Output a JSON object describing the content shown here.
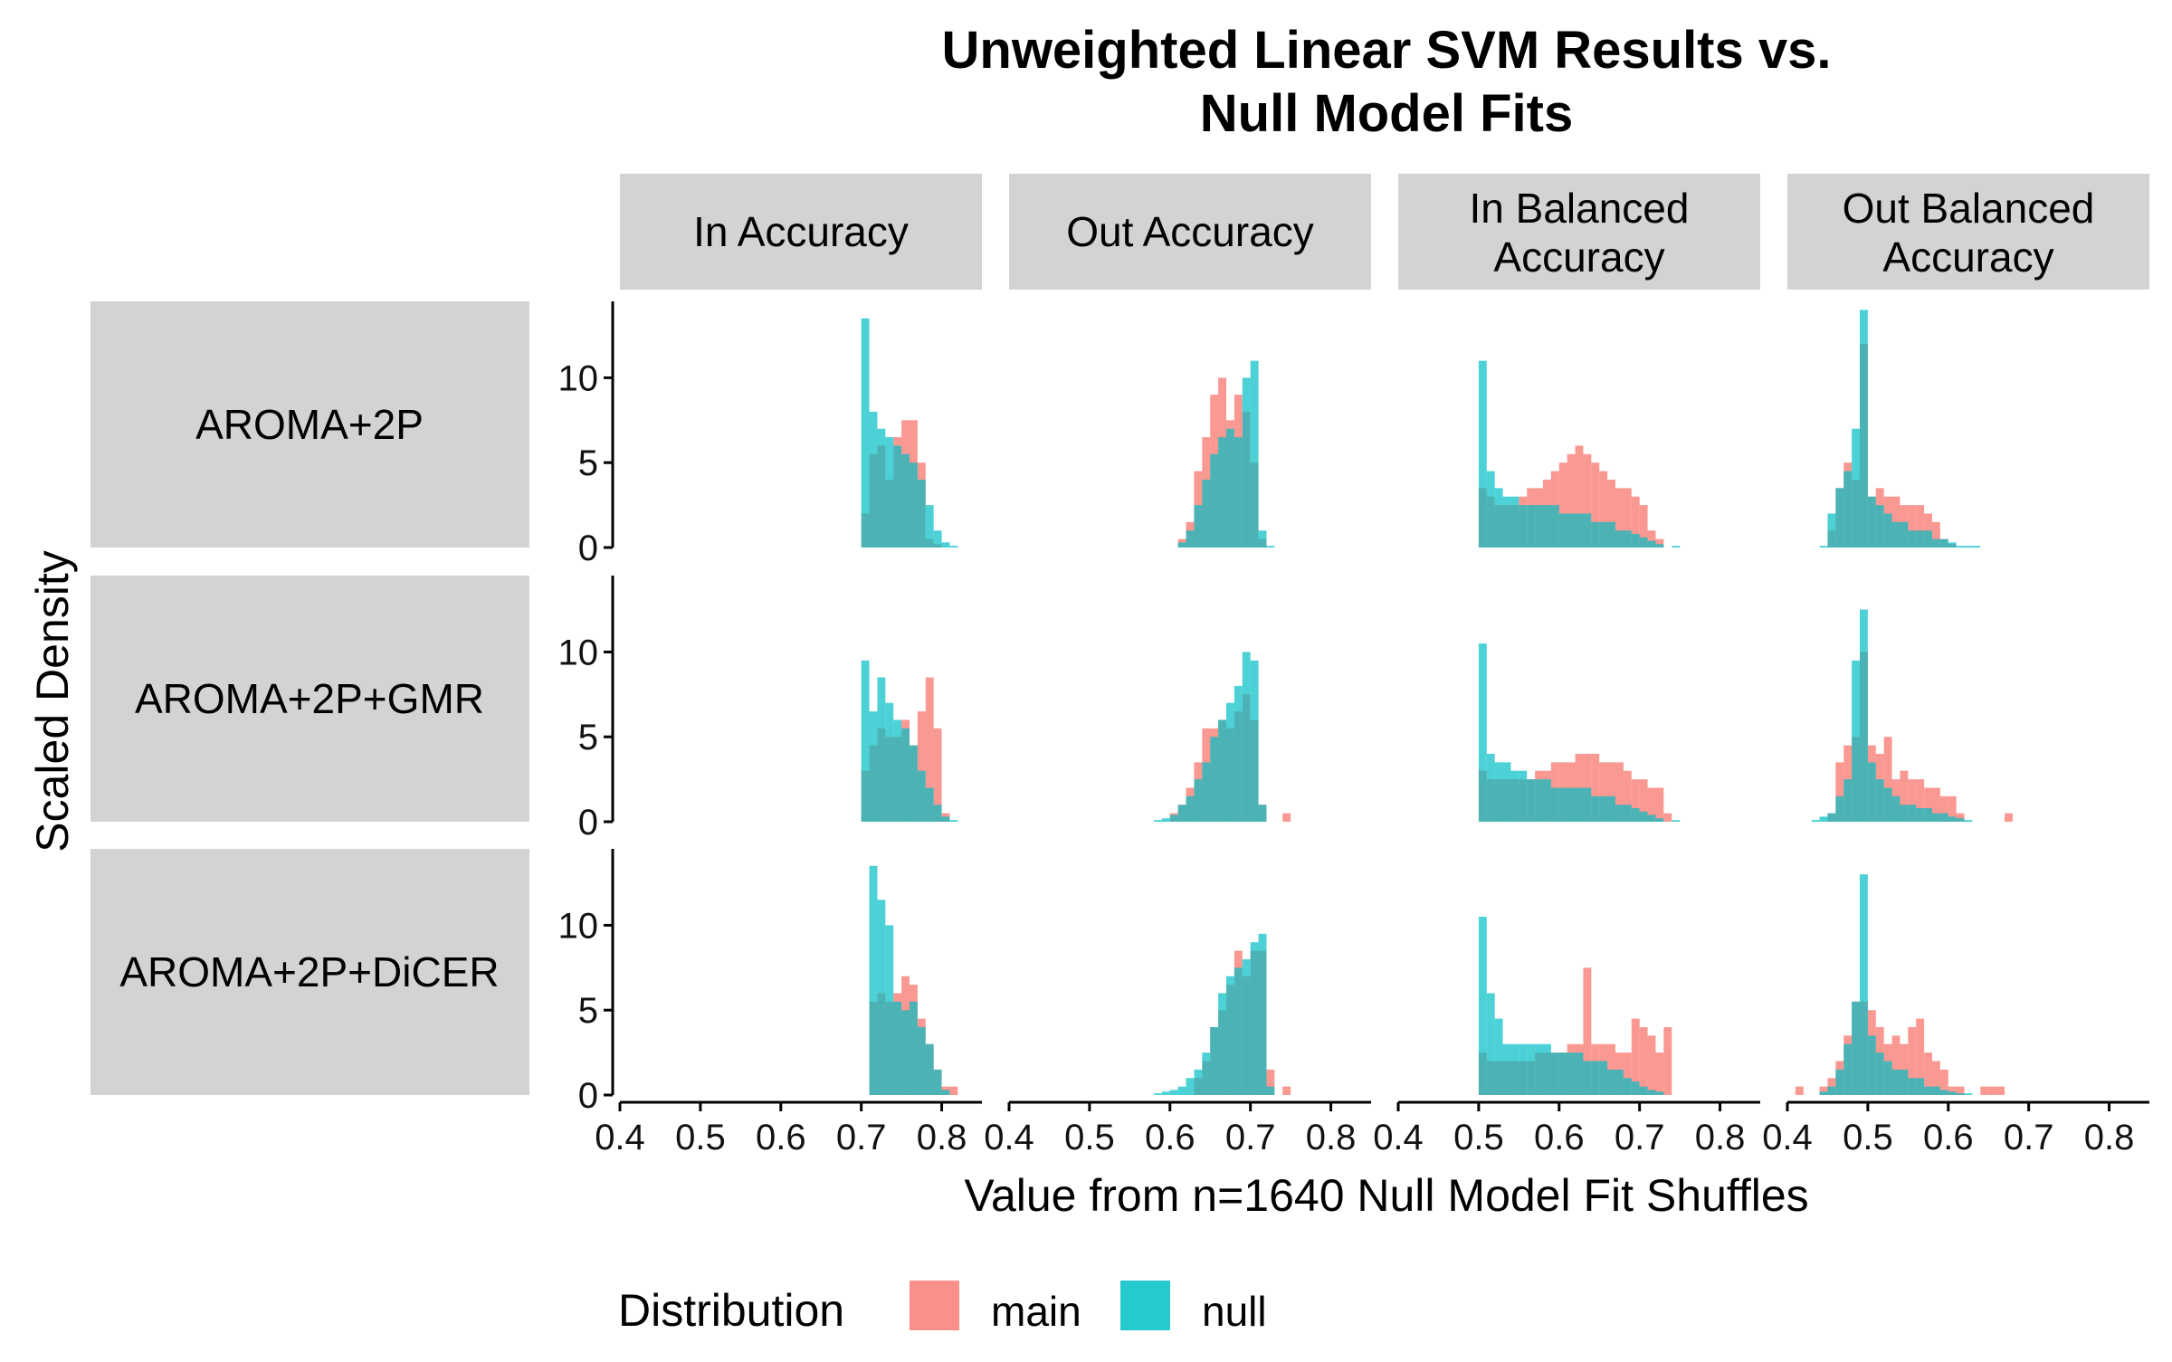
{
  "chart_data": {
    "type": "bar",
    "title_lines": [
      "Unweighted Linear SVM Results vs.",
      "Null Model Fits"
    ],
    "xlabel": "Value from n=1640 Null Model Fit Shuffles",
    "ylabel": "Scaled Density",
    "xlim": [
      0.4,
      0.85
    ],
    "ylim": [
      0,
      14.5
    ],
    "x_ticks": [
      "0.4",
      "0.5",
      "0.6",
      "0.7",
      "0.8"
    ],
    "y_ticks": [
      "0",
      "5",
      "10"
    ],
    "columns": [
      [
        "In Accuracy"
      ],
      [
        "Out Accuracy"
      ],
      [
        "In Balanced",
        "Accuracy"
      ],
      [
        "Out Balanced",
        "Accuracy"
      ]
    ],
    "rows": [
      "AROMA+2P",
      "AROMA+2P+GMR",
      "AROMA+2P+DiCER"
    ],
    "legend": {
      "title": "Distribution",
      "position": "bottom",
      "entries": [
        "main",
        "null"
      ]
    },
    "colors": {
      "main": "#F8766D",
      "null": "#00BFC4",
      "strip": "#d3d3d3"
    },
    "bin_width": 0.01,
    "panels": [
      {
        "row": 0,
        "col": 0,
        "main": {
          "x": [
            0.705,
            0.715,
            0.725,
            0.735,
            0.745,
            0.755,
            0.765,
            0.775,
            0.785,
            0.795
          ],
          "y": [
            2.0,
            5.5,
            6.0,
            4.0,
            6.5,
            7.5,
            7.5,
            5.0,
            0.5,
            0.2
          ]
        },
        "null": {
          "x": [
            0.705,
            0.715,
            0.725,
            0.735,
            0.745,
            0.755,
            0.765,
            0.775,
            0.785,
            0.795,
            0.805,
            0.815
          ],
          "y": [
            13.5,
            8.0,
            7.0,
            6.5,
            6.0,
            5.5,
            5.0,
            4.0,
            2.5,
            1.0,
            0.3,
            0.1
          ]
        }
      },
      {
        "row": 0,
        "col": 1,
        "main": {
          "x": [
            0.615,
            0.625,
            0.635,
            0.645,
            0.655,
            0.665,
            0.675,
            0.685,
            0.695,
            0.705,
            0.715
          ],
          "y": [
            0.5,
            1.5,
            4.5,
            6.5,
            9.0,
            10.0,
            7.5,
            9.0,
            8.0,
            5.0,
            0.5
          ]
        },
        "null": {
          "x": [
            0.615,
            0.625,
            0.635,
            0.645,
            0.655,
            0.665,
            0.675,
            0.685,
            0.695,
            0.705,
            0.715,
            0.725
          ],
          "y": [
            0.3,
            1.0,
            2.5,
            4.0,
            5.5,
            6.5,
            7.0,
            6.5,
            10.0,
            11.0,
            1.0,
            0.1
          ]
        }
      },
      {
        "row": 1,
        "col": 0,
        "main": {
          "x": [
            0.705,
            0.715,
            0.725,
            0.735,
            0.745,
            0.755,
            0.765,
            0.775,
            0.785,
            0.795,
            0.805
          ],
          "y": [
            3.0,
            4.5,
            5.5,
            5.0,
            5.0,
            6.0,
            4.5,
            6.5,
            8.5,
            5.5,
            0.5
          ]
        },
        "null": {
          "x": [
            0.705,
            0.715,
            0.725,
            0.735,
            0.745,
            0.755,
            0.765,
            0.775,
            0.785,
            0.795,
            0.805,
            0.815
          ],
          "y": [
            9.5,
            6.5,
            8.5,
            7.0,
            6.0,
            5.5,
            4.5,
            3.0,
            2.0,
            1.0,
            0.3,
            0.1
          ]
        }
      },
      {
        "row": 1,
        "col": 1,
        "main": {
          "x": [
            0.605,
            0.615,
            0.625,
            0.635,
            0.645,
            0.655,
            0.665,
            0.675,
            0.685,
            0.695,
            0.705,
            0.715,
            0.745
          ],
          "y": [
            0.5,
            1.0,
            2.0,
            3.5,
            5.5,
            5.5,
            6.0,
            5.5,
            6.5,
            7.5,
            6.0,
            1.0,
            0.5
          ]
        },
        "null": {
          "x": [
            0.585,
            0.595,
            0.605,
            0.615,
            0.625,
            0.635,
            0.645,
            0.655,
            0.665,
            0.675,
            0.685,
            0.695,
            0.705,
            0.715
          ],
          "y": [
            0.1,
            0.2,
            0.4,
            1.0,
            1.5,
            2.5,
            3.5,
            5.0,
            6.0,
            7.0,
            8.0,
            10.0,
            9.5,
            1.0
          ]
        }
      },
      {
        "row": 2,
        "col": 0,
        "main": {
          "x": [
            0.715,
            0.725,
            0.735,
            0.745,
            0.755,
            0.765,
            0.775,
            0.785,
            0.795,
            0.805,
            0.815
          ],
          "y": [
            5.5,
            6.0,
            5.5,
            6.0,
            7.0,
            6.5,
            4.5,
            3.0,
            1.5,
            0.5,
            0.5
          ]
        },
        "null": {
          "x": [
            0.715,
            0.725,
            0.735,
            0.745,
            0.755,
            0.765,
            0.775,
            0.785,
            0.795,
            0.805
          ],
          "y": [
            13.5,
            11.5,
            10.0,
            5.5,
            5.0,
            5.5,
            4.0,
            3.0,
            1.5,
            0.3
          ]
        }
      },
      {
        "row": 2,
        "col": 1,
        "main": {
          "x": [
            0.635,
            0.645,
            0.655,
            0.665,
            0.675,
            0.685,
            0.695,
            0.705,
            0.715,
            0.725,
            0.745
          ],
          "y": [
            1.0,
            2.0,
            4.0,
            5.0,
            6.5,
            8.5,
            7.0,
            8.5,
            8.5,
            1.5,
            0.5
          ]
        },
        "null": {
          "x": [
            0.585,
            0.595,
            0.605,
            0.615,
            0.625,
            0.635,
            0.645,
            0.655,
            0.665,
            0.675,
            0.685,
            0.695,
            0.705,
            0.715,
            0.725
          ],
          "y": [
            0.1,
            0.2,
            0.3,
            0.5,
            1.0,
            1.5,
            2.5,
            4.0,
            6.0,
            7.0,
            7.5,
            8.0,
            9.0,
            9.5,
            0.5
          ]
        }
      },
      {
        "row": 0,
        "col": 2,
        "main": {
          "x": [
            0.505,
            0.515,
            0.525,
            0.535,
            0.545,
            0.555,
            0.565,
            0.575,
            0.585,
            0.595,
            0.605,
            0.615,
            0.625,
            0.635,
            0.645,
            0.655,
            0.665,
            0.675,
            0.685,
            0.695,
            0.705,
            0.715,
            0.725
          ],
          "y": [
            3.5,
            3.0,
            2.5,
            2.5,
            2.5,
            3.0,
            3.5,
            3.5,
            4.0,
            4.5,
            5.0,
            5.5,
            6.0,
            5.5,
            5.0,
            4.5,
            4.0,
            3.5,
            3.5,
            3.0,
            2.5,
            1.0,
            0.5
          ]
        },
        "null": {
          "x": [
            0.505,
            0.515,
            0.525,
            0.535,
            0.545,
            0.555,
            0.565,
            0.575,
            0.585,
            0.595,
            0.605,
            0.615,
            0.625,
            0.635,
            0.645,
            0.655,
            0.665,
            0.675,
            0.685,
            0.695,
            0.705,
            0.715,
            0.725,
            0.745
          ],
          "y": [
            11.0,
            4.5,
            3.5,
            3.0,
            3.0,
            2.5,
            2.5,
            2.5,
            2.5,
            2.5,
            2.0,
            2.0,
            2.0,
            2.0,
            1.5,
            1.5,
            1.5,
            1.0,
            1.0,
            0.8,
            0.6,
            0.4,
            0.2,
            0.1
          ]
        }
      },
      {
        "row": 1,
        "col": 2,
        "main": {
          "x": [
            0.505,
            0.515,
            0.525,
            0.535,
            0.545,
            0.555,
            0.565,
            0.575,
            0.585,
            0.595,
            0.605,
            0.615,
            0.625,
            0.635,
            0.645,
            0.655,
            0.665,
            0.675,
            0.685,
            0.695,
            0.705,
            0.715,
            0.725,
            0.735
          ],
          "y": [
            3.0,
            2.5,
            2.5,
            2.5,
            2.5,
            2.5,
            2.5,
            3.0,
            3.0,
            3.5,
            3.5,
            3.5,
            4.0,
            4.0,
            4.0,
            3.5,
            3.5,
            3.5,
            3.0,
            2.5,
            2.5,
            2.0,
            2.0,
            0.5
          ]
        },
        "null": {
          "x": [
            0.505,
            0.515,
            0.525,
            0.535,
            0.545,
            0.555,
            0.565,
            0.575,
            0.585,
            0.595,
            0.605,
            0.615,
            0.625,
            0.635,
            0.645,
            0.655,
            0.665,
            0.675,
            0.685,
            0.695,
            0.705,
            0.715,
            0.725,
            0.745
          ],
          "y": [
            10.5,
            4.0,
            3.5,
            3.5,
            3.0,
            3.0,
            2.5,
            2.5,
            2.5,
            2.0,
            2.0,
            2.0,
            2.0,
            2.0,
            1.5,
            1.5,
            1.5,
            1.0,
            1.0,
            0.8,
            0.6,
            0.4,
            0.2,
            0.1
          ]
        }
      },
      {
        "row": 2,
        "col": 2,
        "main": {
          "x": [
            0.505,
            0.515,
            0.525,
            0.535,
            0.545,
            0.555,
            0.565,
            0.575,
            0.585,
            0.595,
            0.605,
            0.615,
            0.625,
            0.635,
            0.645,
            0.655,
            0.665,
            0.675,
            0.685,
            0.695,
            0.705,
            0.715,
            0.725,
            0.735
          ],
          "y": [
            2.5,
            2.0,
            2.0,
            2.0,
            2.0,
            2.0,
            2.0,
            2.5,
            2.5,
            2.5,
            2.5,
            3.0,
            3.0,
            7.5,
            3.0,
            3.0,
            3.0,
            2.5,
            2.5,
            4.5,
            4.0,
            3.5,
            2.5,
            4.0
          ]
        },
        "null": {
          "x": [
            0.505,
            0.515,
            0.525,
            0.535,
            0.545,
            0.555,
            0.565,
            0.575,
            0.585,
            0.595,
            0.605,
            0.615,
            0.625,
            0.635,
            0.645,
            0.655,
            0.665,
            0.675,
            0.685,
            0.695,
            0.705,
            0.715,
            0.725
          ],
          "y": [
            10.5,
            6.0,
            4.5,
            3.0,
            3.0,
            3.0,
            3.0,
            3.0,
            3.0,
            2.5,
            2.5,
            2.5,
            2.5,
            2.0,
            2.0,
            2.0,
            1.5,
            1.5,
            1.0,
            0.8,
            0.5,
            0.3,
            0.2
          ]
        }
      },
      {
        "row": 0,
        "col": 3,
        "main": {
          "x": [
            0.455,
            0.465,
            0.475,
            0.485,
            0.495,
            0.505,
            0.515,
            0.525,
            0.535,
            0.545,
            0.555,
            0.565,
            0.575,
            0.585,
            0.595,
            0.605
          ],
          "y": [
            1.0,
            3.5,
            5.0,
            4.0,
            12.0,
            3.0,
            3.5,
            3.0,
            3.0,
            2.5,
            2.5,
            2.5,
            2.0,
            1.5,
            0.5,
            0.2
          ]
        },
        "null": {
          "x": [
            0.445,
            0.455,
            0.465,
            0.475,
            0.485,
            0.495,
            0.505,
            0.515,
            0.525,
            0.535,
            0.545,
            0.555,
            0.565,
            0.575,
            0.585,
            0.595,
            0.605,
            0.615,
            0.625,
            0.635
          ],
          "y": [
            0.1,
            2.0,
            3.5,
            4.5,
            7.0,
            14.0,
            3.0,
            2.5,
            2.0,
            1.5,
            1.5,
            1.0,
            1.0,
            1.0,
            0.5,
            0.5,
            0.3,
            0.1,
            0.1,
            0.1
          ]
        }
      },
      {
        "row": 1,
        "col": 3,
        "main": {
          "x": [
            0.455,
            0.465,
            0.475,
            0.485,
            0.495,
            0.505,
            0.515,
            0.525,
            0.535,
            0.545,
            0.555,
            0.565,
            0.575,
            0.585,
            0.595,
            0.605,
            0.615,
            0.675
          ],
          "y": [
            0.5,
            3.5,
            4.5,
            5.0,
            10.0,
            4.5,
            4.0,
            5.0,
            2.5,
            3.0,
            2.5,
            2.5,
            2.0,
            2.0,
            1.5,
            1.5,
            0.5,
            0.5
          ]
        },
        "null": {
          "x": [
            0.435,
            0.445,
            0.455,
            0.465,
            0.475,
            0.485,
            0.495,
            0.505,
            0.515,
            0.525,
            0.535,
            0.545,
            0.555,
            0.565,
            0.575,
            0.585,
            0.595,
            0.605,
            0.615,
            0.625
          ],
          "y": [
            0.1,
            0.3,
            0.5,
            1.5,
            2.5,
            9.5,
            12.5,
            3.5,
            2.5,
            2.0,
            1.5,
            1.0,
            1.0,
            0.8,
            0.8,
            0.5,
            0.5,
            0.3,
            0.2,
            0.1
          ]
        }
      },
      {
        "row": 2,
        "col": 3,
        "main": {
          "x": [
            0.415,
            0.445,
            0.455,
            0.465,
            0.475,
            0.485,
            0.495,
            0.505,
            0.515,
            0.525,
            0.535,
            0.545,
            0.555,
            0.565,
            0.575,
            0.585,
            0.595,
            0.605,
            0.615,
            0.645,
            0.655,
            0.665
          ],
          "y": [
            0.5,
            0.5,
            1.0,
            2.0,
            3.5,
            5.5,
            5.5,
            5.0,
            4.0,
            3.0,
            3.5,
            3.0,
            4.0,
            4.5,
            2.5,
            2.0,
            1.5,
            0.5,
            0.5,
            0.5,
            0.5,
            0.5
          ]
        },
        "null": {
          "x": [
            0.445,
            0.455,
            0.465,
            0.475,
            0.485,
            0.495,
            0.505,
            0.515,
            0.525,
            0.535,
            0.545,
            0.555,
            0.565,
            0.575,
            0.585,
            0.595,
            0.605,
            0.615,
            0.625
          ],
          "y": [
            0.2,
            0.5,
            1.5,
            3.0,
            5.5,
            13.0,
            3.5,
            2.5,
            2.0,
            1.5,
            1.5,
            1.0,
            1.0,
            0.5,
            0.5,
            0.3,
            0.2,
            0.1,
            0.1
          ]
        }
      }
    ]
  }
}
